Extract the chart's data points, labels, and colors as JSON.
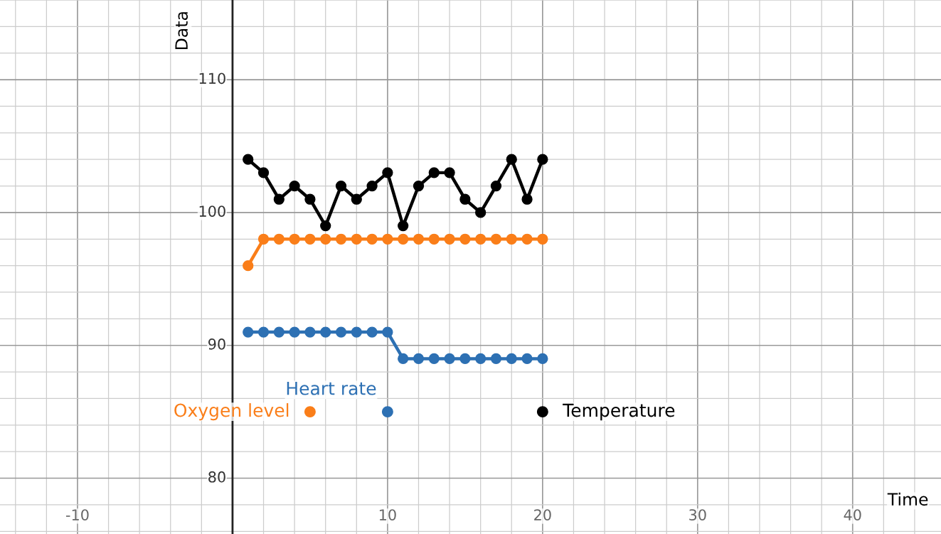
{
  "chart_data": {
    "type": "line",
    "xlabel": "Time",
    "ylabel": "Data",
    "xlim": [
      -15,
      45.7
    ],
    "ylim": [
      75.8,
      116
    ],
    "xticks": [
      -10,
      10,
      20,
      30,
      40
    ],
    "yticks": [
      80,
      90,
      100,
      110
    ],
    "grid": true,
    "marker": "circle",
    "line_style": "solid",
    "legend": false,
    "x": [
      1,
      2,
      3,
      4,
      5,
      6,
      7,
      8,
      9,
      10,
      11,
      12,
      13,
      14,
      15,
      16,
      17,
      18,
      19,
      20
    ],
    "series": [
      {
        "color": "#000000",
        "values": [
          104,
          103,
          101,
          102,
          101,
          99,
          102,
          101,
          102,
          103,
          99,
          102,
          103,
          103,
          101,
          100,
          102,
          104,
          101,
          104
        ]
      },
      {
        "color": "#fa7e19",
        "values": [
          96,
          98,
          98,
          98,
          98,
          98,
          98,
          98,
          98,
          98,
          98,
          98,
          98,
          98,
          98,
          98,
          98,
          98,
          98,
          98
        ]
      },
      {
        "color": "#2d70b3",
        "values": [
          91,
          91,
          91,
          91,
          91,
          91,
          91,
          91,
          91,
          91,
          89,
          89,
          89,
          89,
          89,
          89,
          89,
          89,
          89,
          89
        ]
      },
      {
        "type": "scatter",
        "name": "Oxygen level",
        "color": "#fa7e19",
        "x": [
          5
        ],
        "values": [
          85
        ]
      },
      {
        "type": "scatter",
        "name": "Heart rate",
        "color": "#2d70b3",
        "x": [
          10
        ],
        "values": [
          85
        ]
      },
      {
        "type": "scatter",
        "name": "Temperature",
        "color": "#000000",
        "x": [
          20
        ],
        "values": [
          85
        ]
      }
    ]
  }
}
